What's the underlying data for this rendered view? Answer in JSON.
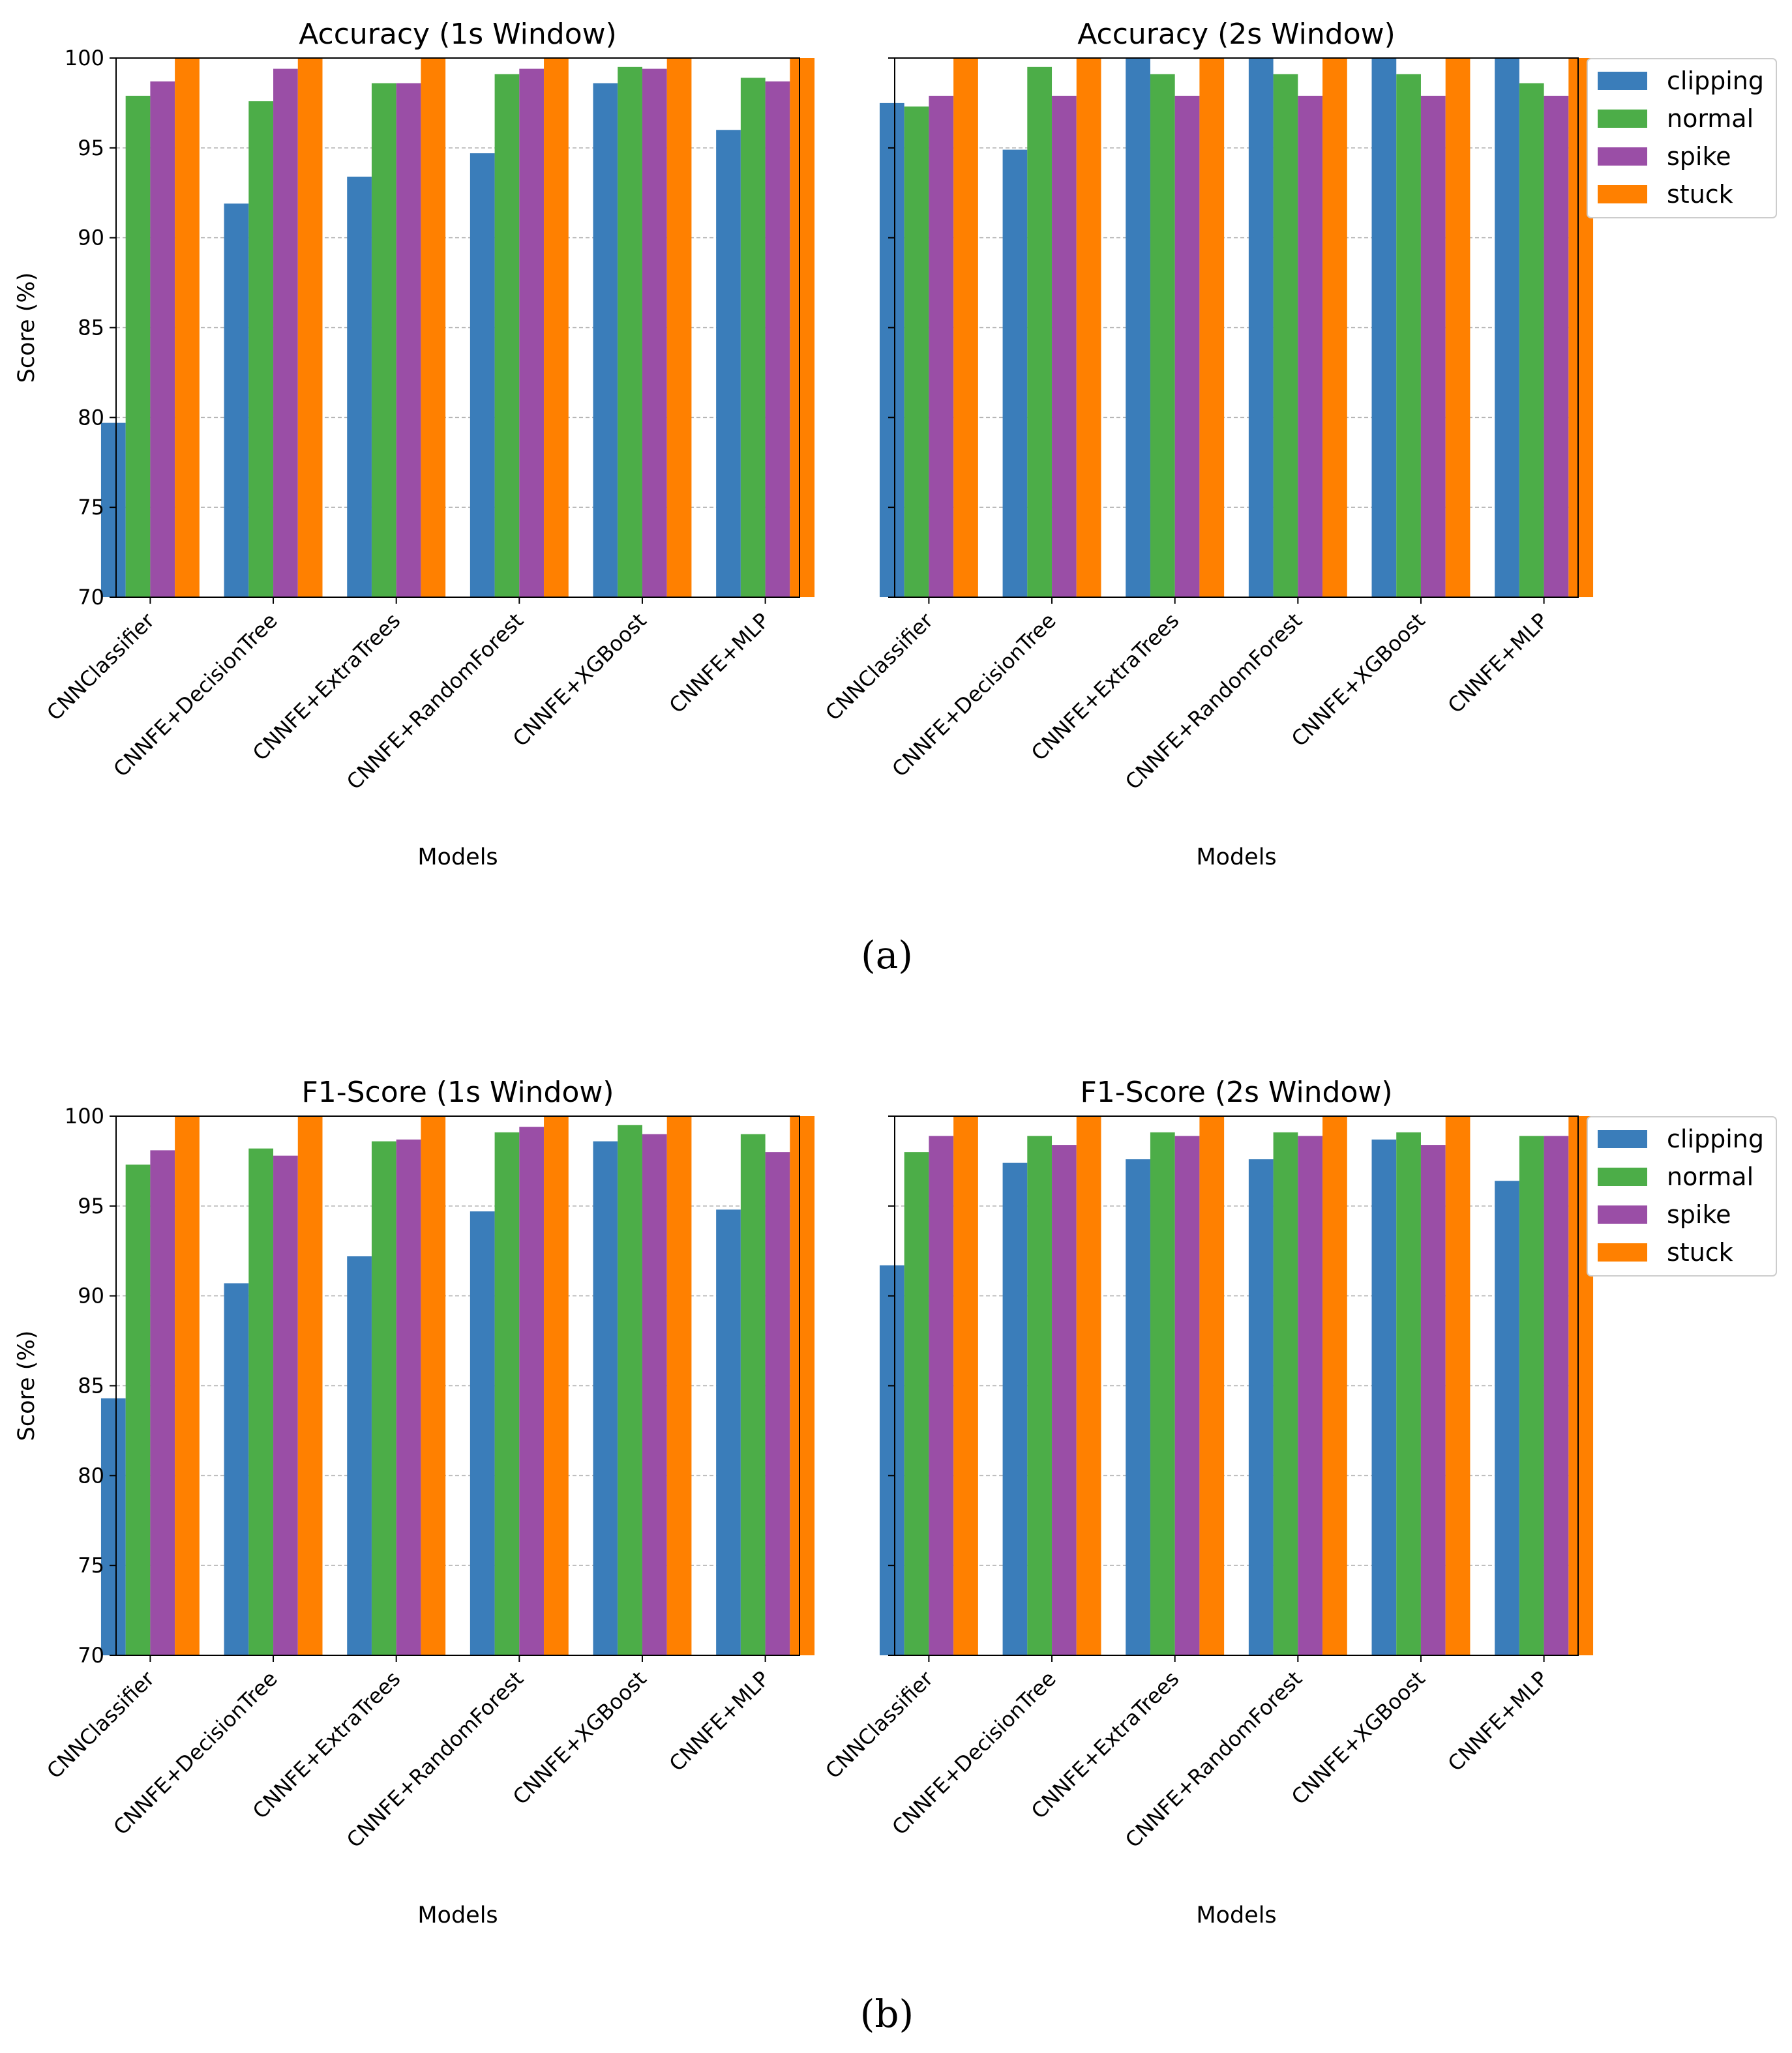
{
  "colors": {
    "clipping": "#3a7dba",
    "normal": "#4cad48",
    "spike": "#9a4ea6",
    "stuck": "#ff8000",
    "grid": "#b0b0b0",
    "axis": "#000000"
  },
  "captions": [
    "(a)",
    "(b)"
  ],
  "chart_data": [
    {
      "type": "bar",
      "title": "Accuracy (1s Window)",
      "xlabel": "Models",
      "ylabel": "Score (%)",
      "ylim": [
        70,
        100
      ],
      "yticks": [
        "70",
        "75",
        "80",
        "85",
        "90",
        "95",
        "100"
      ],
      "grid": "y-dashed",
      "legend": "none",
      "categories": [
        "CNNClassifier",
        "CNNFE+DecisionTree",
        "CNNFE+ExtraTrees",
        "CNNFE+RandomForest",
        "CNNFE+XGBoost",
        "CNNFE+MLP"
      ],
      "series": [
        {
          "name": "clipping",
          "values": [
            79.7,
            91.9,
            93.4,
            94.7,
            98.6,
            96.0
          ]
        },
        {
          "name": "normal",
          "values": [
            97.9,
            97.6,
            98.6,
            99.1,
            99.5,
            98.9
          ]
        },
        {
          "name": "spike",
          "values": [
            98.7,
            99.4,
            98.6,
            99.4,
            99.4,
            98.7
          ]
        },
        {
          "name": "stuck",
          "values": [
            100,
            100,
            100,
            100,
            100,
            100
          ]
        }
      ]
    },
    {
      "type": "bar",
      "title": "Accuracy (2s Window)",
      "xlabel": "Models",
      "ylabel": "",
      "ylim": [
        70,
        100
      ],
      "yticks": [],
      "grid": "y-dashed",
      "legend": "upper-right-outside",
      "categories": [
        "CNNClassifier",
        "CNNFE+DecisionTree",
        "CNNFE+ExtraTrees",
        "CNNFE+RandomForest",
        "CNNFE+XGBoost",
        "CNNFE+MLP"
      ],
      "series": [
        {
          "name": "clipping",
          "values": [
            97.5,
            94.9,
            100,
            100,
            100,
            100
          ]
        },
        {
          "name": "normal",
          "values": [
            97.3,
            99.5,
            99.1,
            99.1,
            99.1,
            98.6
          ]
        },
        {
          "name": "spike",
          "values": [
            97.9,
            97.9,
            97.9,
            97.9,
            97.9,
            97.9
          ]
        },
        {
          "name": "stuck",
          "values": [
            100,
            100,
            100,
            100,
            100,
            100
          ]
        }
      ]
    },
    {
      "type": "bar",
      "title": "F1-Score (1s Window)",
      "xlabel": "Models",
      "ylabel": "Score (%)",
      "ylim": [
        70,
        100
      ],
      "yticks": [
        "70",
        "75",
        "80",
        "85",
        "90",
        "95",
        "100"
      ],
      "grid": "y-dashed",
      "legend": "none",
      "categories": [
        "CNNClassifier",
        "CNNFE+DecisionTree",
        "CNNFE+ExtraTrees",
        "CNNFE+RandomForest",
        "CNNFE+XGBoost",
        "CNNFE+MLP"
      ],
      "series": [
        {
          "name": "clipping",
          "values": [
            84.3,
            90.7,
            92.2,
            94.7,
            98.6,
            94.8
          ]
        },
        {
          "name": "normal",
          "values": [
            97.3,
            98.2,
            98.6,
            99.1,
            99.5,
            99.0
          ]
        },
        {
          "name": "spike",
          "values": [
            98.1,
            97.8,
            98.7,
            99.4,
            99.0,
            98.0
          ]
        },
        {
          "name": "stuck",
          "values": [
            100,
            100,
            100,
            100,
            100,
            100
          ]
        }
      ]
    },
    {
      "type": "bar",
      "title": "F1-Score (2s Window)",
      "xlabel": "Models",
      "ylabel": "",
      "ylim": [
        70,
        100
      ],
      "yticks": [],
      "grid": "y-dashed",
      "legend": "upper-right-outside",
      "categories": [
        "CNNClassifier",
        "CNNFE+DecisionTree",
        "CNNFE+ExtraTrees",
        "CNNFE+RandomForest",
        "CNNFE+XGBoost",
        "CNNFE+MLP"
      ],
      "series": [
        {
          "name": "clipping",
          "values": [
            91.7,
            97.4,
            97.6,
            97.6,
            98.7,
            96.4
          ]
        },
        {
          "name": "normal",
          "values": [
            98.0,
            98.9,
            99.1,
            99.1,
            99.1,
            98.9
          ]
        },
        {
          "name": "spike",
          "values": [
            98.9,
            98.4,
            98.9,
            98.9,
            98.4,
            98.9
          ]
        },
        {
          "name": "stuck",
          "values": [
            100,
            100,
            100,
            100,
            100,
            100
          ]
        }
      ]
    }
  ]
}
